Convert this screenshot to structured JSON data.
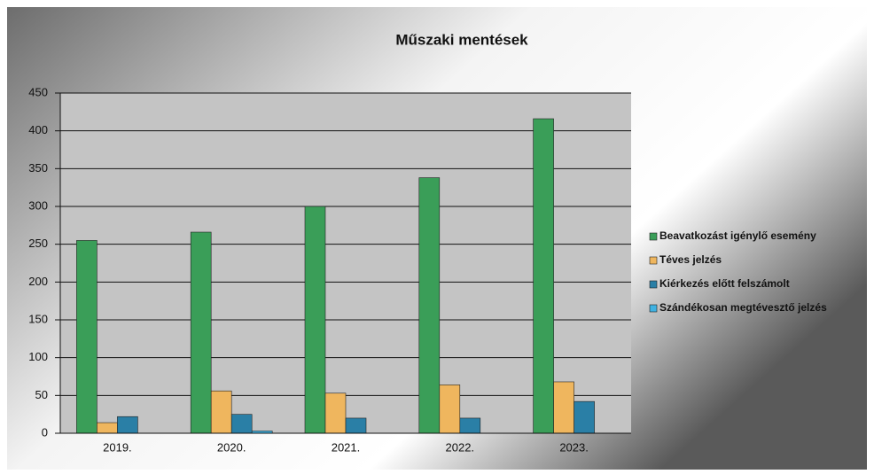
{
  "chart_data": {
    "type": "bar",
    "title": "Műszaki mentések",
    "categories": [
      "2019.",
      "2020.",
      "2021.",
      "2022.",
      "2023."
    ],
    "series": [
      {
        "name": "Beavatkozást igénylő esemény",
        "color": "#3a9e58",
        "values": [
          255,
          266,
          300,
          338,
          416
        ]
      },
      {
        "name": "Téves jelzés",
        "color": "#efb65e",
        "values": [
          14,
          56,
          53,
          64,
          68
        ]
      },
      {
        "name": "Kiérkezés előtt felszámolt",
        "color": "#2a7fa6",
        "values": [
          22,
          25,
          20,
          20,
          42
        ]
      },
      {
        "name": "Szándékosan megtévesztő jelzés",
        "color": "#3fb2e2",
        "values": [
          0,
          3,
          0,
          0,
          0
        ]
      }
    ],
    "ylim": [
      0,
      450
    ],
    "yticks": [
      0,
      50,
      100,
      150,
      200,
      250,
      300,
      350,
      400,
      450
    ],
    "grid": true,
    "legend": "right"
  }
}
